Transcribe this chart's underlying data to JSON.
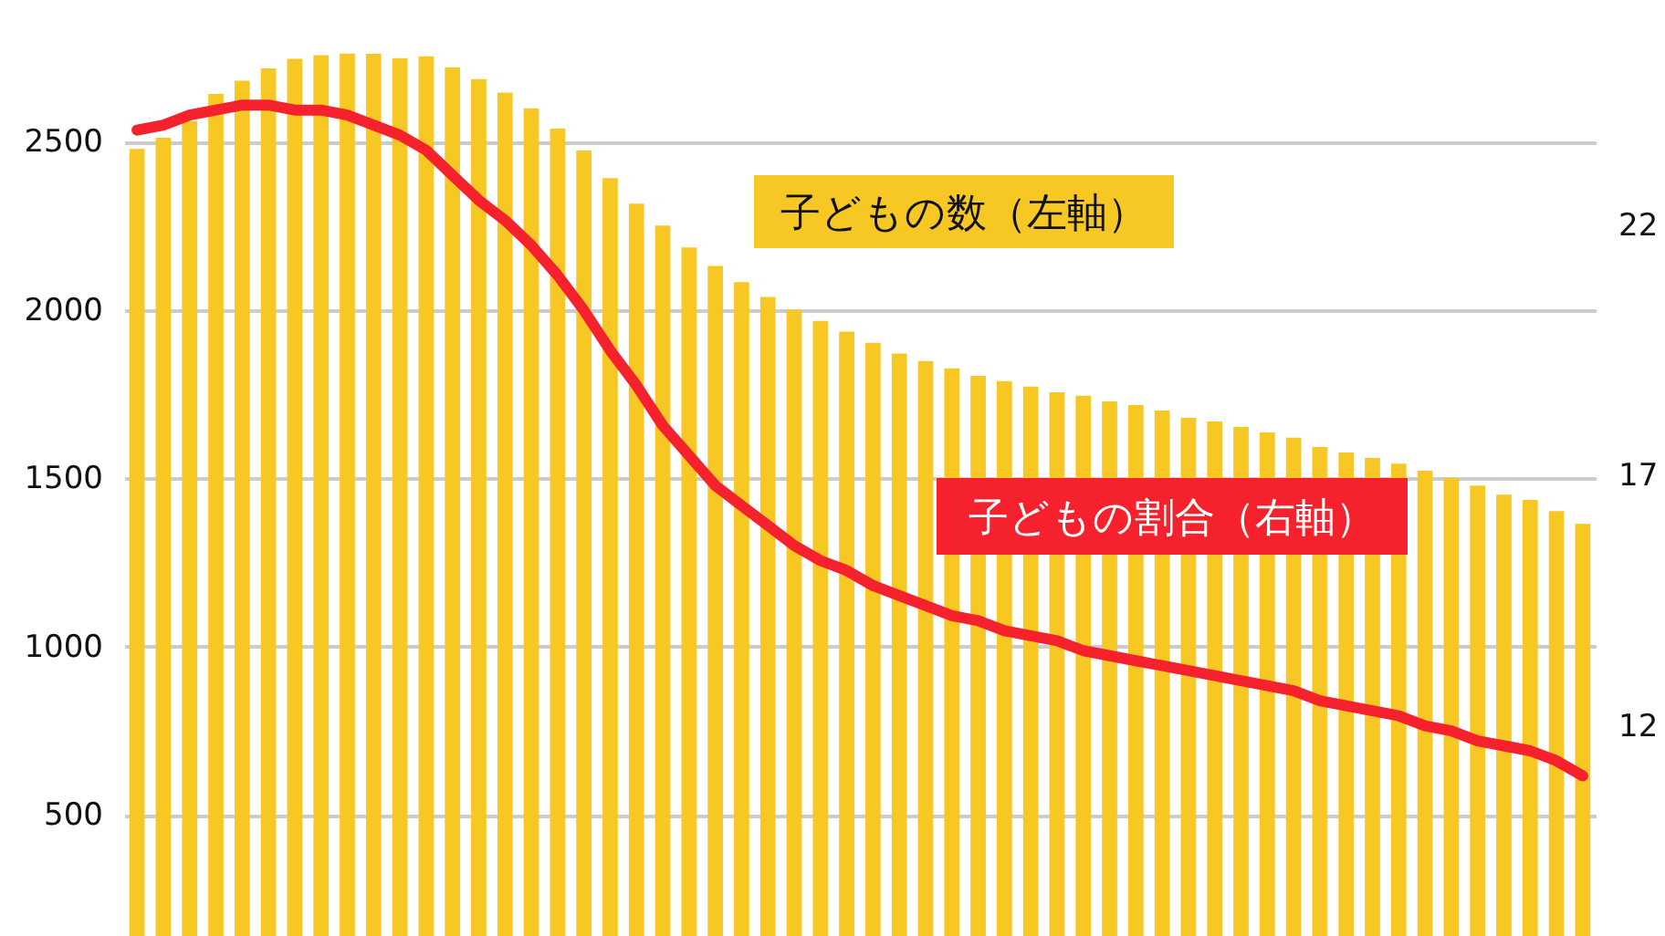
{
  "chart_data": {
    "type": "bar",
    "categories": [
      null,
      null,
      null,
      null,
      null,
      null,
      null,
      null,
      null,
      null,
      null,
      null,
      null,
      null,
      null,
      null,
      null,
      null,
      null,
      null,
      null,
      null,
      null,
      null,
      null,
      null,
      null,
      null,
      null,
      null,
      null,
      null,
      null,
      null,
      null,
      null,
      null,
      null,
      null,
      null,
      null,
      null,
      null,
      null,
      null,
      null,
      null,
      null,
      null,
      null,
      null,
      null,
      null,
      null,
      null,
      null
    ],
    "series": [
      {
        "name": null,
        "color": "#f7c823",
        "values": [
          2478,
          2511,
          2560,
          2641,
          2680,
          2717,
          2745,
          2756,
          2761,
          2760,
          2747,
          2753,
          2720,
          2685,
          2645,
          2598,
          2538,
          2473,
          2391,
          2315,
          2250,
          2185,
          2130,
          2082,
          2038,
          2000,
          1967,
          1935,
          1902,
          1870,
          1848,
          1826,
          1804,
          1788,
          1772,
          1755,
          1745,
          1728,
          1717,
          1701,
          1679,
          1668,
          1652,
          1636,
          1620,
          1592,
          1576,
          1560,
          1543,
          1522,
          1500,
          1478,
          1451,
          1435,
          1402,
          1364
        ]
      },
      {
        "name": null,
        "type": "line",
        "axis": "y2",
        "color": "#f5222d",
        "values": [
          23.9,
          24.0,
          24.2,
          24.3,
          24.4,
          24.4,
          24.3,
          24.3,
          24.2,
          24.0,
          23.8,
          23.5,
          23.0,
          22.5,
          22.1,
          21.6,
          21.0,
          20.3,
          19.5,
          18.8,
          18.0,
          17.4,
          16.8,
          16.4,
          16.0,
          15.6,
          15.3,
          15.1,
          14.8,
          14.6,
          14.4,
          14.2,
          14.1,
          13.9,
          13.8,
          13.7,
          13.5,
          13.4,
          13.3,
          13.2,
          13.1,
          13.0,
          12.9,
          12.8,
          12.7,
          12.5,
          12.4,
          12.3,
          12.2,
          12.0,
          11.9,
          11.7,
          11.6,
          11.5,
          11.3,
          11.0
        ]
      }
    ],
    "ylim": [
      140,
      2920
    ],
    "yticks": [
      500,
      1000,
      1500,
      2000,
      2500
    ],
    "y2lim": [
      7.8,
      26.5
    ],
    "y2ticks": [
      {
        "value": 12,
        "label": "12"
      },
      {
        "value": 17,
        "label": "17"
      },
      {
        "value": 22,
        "label": "22"
      }
    ],
    "grid": "y",
    "annotations": [
      "子どもの数（左軸）",
      "子どもの割合（右軸）"
    ]
  }
}
